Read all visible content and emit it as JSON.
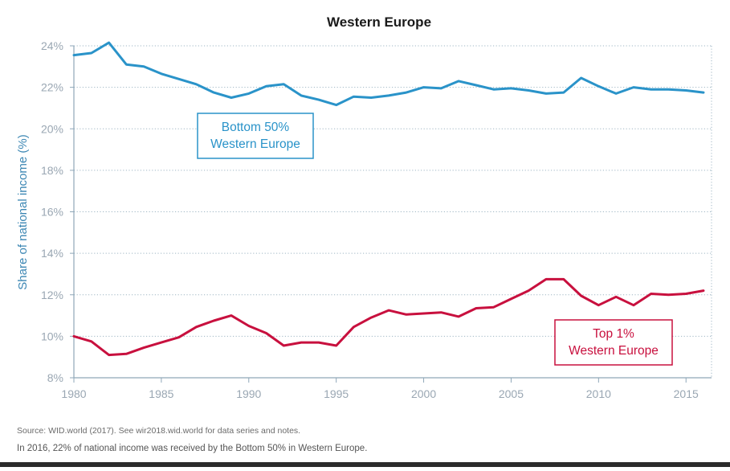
{
  "chart_data": {
    "type": "line",
    "title": "Western Europe",
    "xlabel": "",
    "ylabel": "Share of national income (%)",
    "xlim": [
      1980,
      2016
    ],
    "ylim": [
      8,
      24
    ],
    "x_ticks": [
      1980,
      1985,
      1990,
      1995,
      2000,
      2005,
      2010,
      2015
    ],
    "x_tick_labels": [
      "1980",
      "1985",
      "1990",
      "1995",
      "2000",
      "2005",
      "2010",
      "2015"
    ],
    "y_ticks": [
      8,
      10,
      12,
      14,
      16,
      18,
      20,
      22,
      24
    ],
    "y_tick_labels": [
      "8%",
      "10%",
      "12%",
      "14%",
      "16%",
      "18%",
      "20%",
      "22%",
      "24%"
    ],
    "grid": true,
    "x": [
      1980,
      1981,
      1982,
      1983,
      1984,
      1985,
      1986,
      1987,
      1988,
      1989,
      1990,
      1991,
      1992,
      1993,
      1994,
      1995,
      1996,
      1997,
      1998,
      1999,
      2000,
      2001,
      2002,
      2003,
      2004,
      2005,
      2006,
      2007,
      2008,
      2009,
      2010,
      2011,
      2012,
      2013,
      2014,
      2015,
      2016
    ],
    "series": [
      {
        "name": "Bottom 50% Western Europe",
        "legend_lines": [
          "Bottom 50%",
          "Western Europe"
        ],
        "color": "#2a93c9",
        "values": [
          23.55,
          23.65,
          24.15,
          23.1,
          23.0,
          22.65,
          22.4,
          22.15,
          21.75,
          21.5,
          21.7,
          22.05,
          22.15,
          21.6,
          21.4,
          21.15,
          21.55,
          21.5,
          21.6,
          21.75,
          22.0,
          21.95,
          22.3,
          22.1,
          21.9,
          21.95,
          21.85,
          21.7,
          21.75,
          22.45,
          22.05,
          21.7,
          22.0,
          21.9,
          21.9,
          21.85,
          21.75
        ]
      },
      {
        "name": "Top 1% Western Europe",
        "legend_lines": [
          "Top 1%",
          "Western Europe"
        ],
        "color": "#c8103e",
        "values": [
          10.0,
          9.75,
          9.1,
          9.15,
          9.45,
          9.7,
          9.95,
          10.45,
          10.75,
          11.0,
          10.5,
          10.15,
          9.55,
          9.7,
          9.7,
          9.55,
          10.45,
          10.9,
          11.25,
          11.05,
          11.1,
          11.15,
          10.95,
          11.35,
          11.4,
          11.8,
          12.2,
          12.75,
          12.75,
          11.95,
          11.5,
          11.9,
          11.5,
          12.05,
          12.0,
          12.05,
          12.2
        ]
      }
    ]
  },
  "footnotes": {
    "source": "Source: WID.world (2017). See wir2018.wid.world for data series and notes.",
    "note": "In 2016, 22% of national income was received by the Bottom 50% in Western Europe."
  }
}
